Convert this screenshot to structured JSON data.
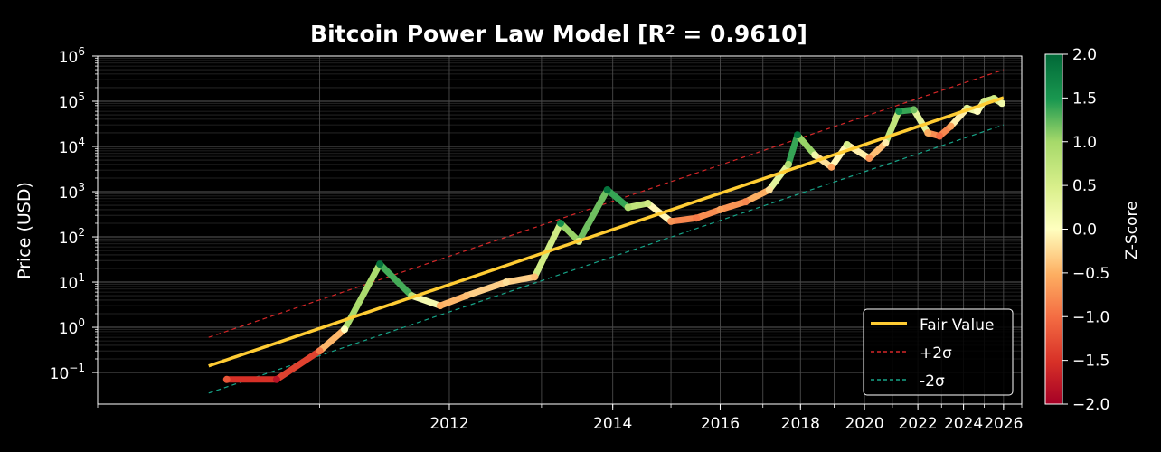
{
  "chart_data": {
    "type": "scatter",
    "title": "Bitcoin Power Law Model [R² = 0.9610]",
    "xlabel": "",
    "ylabel": "Price (USD)",
    "y_scale": "log",
    "y_ticks": [
      {
        "base": "10",
        "exp": "−1",
        "value": 0.1
      },
      {
        "base": "10",
        "exp": "0",
        "value": 1
      },
      {
        "base": "10",
        "exp": "1",
        "value": 10
      },
      {
        "base": "10",
        "exp": "2",
        "value": 100
      },
      {
        "base": "10",
        "exp": "3",
        "value": 1000
      },
      {
        "base": "10",
        "exp": "4",
        "value": 10000
      },
      {
        "base": "10",
        "exp": "5",
        "value": 100000
      },
      {
        "base": "10",
        "exp": "6",
        "value": 1000000
      }
    ],
    "x_scale": "log (days since genesis)",
    "x_ticks": [
      "2012",
      "2014",
      "2016",
      "2018",
      "2020",
      "2022",
      "2024",
      "2026"
    ],
    "x_tick_years": [
      2012,
      2014,
      2016,
      2018,
      2020,
      2022,
      2024,
      2026
    ],
    "xlim": [
      "2010-01",
      "2027-01"
    ],
    "ylim": [
      0.02,
      1000000
    ],
    "grid": true,
    "legend_position": "lower-right",
    "legend": [
      {
        "label": "Fair Value",
        "color": "#ffcc33",
        "style": "solid"
      },
      {
        "label": "+2σ",
        "color": "#d62728",
        "style": "dashed"
      },
      {
        "label": "-2σ",
        "color": "#17a589",
        "style": "dashed"
      }
    ],
    "series": [
      {
        "name": "Price",
        "color_by": "Z-Score",
        "points": [
          {
            "date": "2010-07",
            "price": 0.07,
            "z": -1.2
          },
          {
            "date": "2010-10",
            "price": 0.07,
            "z": -1.8
          },
          {
            "date": "2011-01",
            "price": 0.3,
            "z": -0.9
          },
          {
            "date": "2011-03",
            "price": 0.9,
            "z": 0.0
          },
          {
            "date": "2011-06",
            "price": 25,
            "z": 1.9
          },
          {
            "date": "2011-09",
            "price": 5,
            "z": 0.8
          },
          {
            "date": "2011-12",
            "price": 3,
            "z": -0.5
          },
          {
            "date": "2012-03",
            "price": 5,
            "z": -0.4
          },
          {
            "date": "2012-08",
            "price": 10,
            "z": -0.2
          },
          {
            "date": "2012-12",
            "price": 13,
            "z": -0.4
          },
          {
            "date": "2013-04",
            "price": 200,
            "z": 1.6
          },
          {
            "date": "2013-07",
            "price": 80,
            "z": 0.5
          },
          {
            "date": "2013-12",
            "price": 1100,
            "z": 1.9
          },
          {
            "date": "2014-04",
            "price": 450,
            "z": 0.9
          },
          {
            "date": "2014-08",
            "price": 550,
            "z": 0.6
          },
          {
            "date": "2015-01",
            "price": 220,
            "z": -0.7
          },
          {
            "date": "2015-07",
            "price": 260,
            "z": -0.9
          },
          {
            "date": "2016-01",
            "price": 400,
            "z": -0.6
          },
          {
            "date": "2016-08",
            "price": 600,
            "z": -0.8
          },
          {
            "date": "2017-03",
            "price": 1100,
            "z": -0.2
          },
          {
            "date": "2017-09",
            "price": 4000,
            "z": 0.9
          },
          {
            "date": "2017-12",
            "price": 18000,
            "z": 1.9
          },
          {
            "date": "2018-06",
            "price": 6500,
            "z": 0.2
          },
          {
            "date": "2018-12",
            "price": 3500,
            "z": -0.6
          },
          {
            "date": "2019-06",
            "price": 11000,
            "z": 0.5
          },
          {
            "date": "2020-03",
            "price": 5500,
            "z": -0.7
          },
          {
            "date": "2020-10",
            "price": 12000,
            "z": -0.1
          },
          {
            "date": "2021-04",
            "price": 60000,
            "z": 1.6
          },
          {
            "date": "2021-11",
            "price": 65000,
            "z": 1.2
          },
          {
            "date": "2022-06",
            "price": 20000,
            "z": -0.5
          },
          {
            "date": "2022-12",
            "price": 17000,
            "z": -1.0
          },
          {
            "date": "2023-06",
            "price": 28000,
            "z": -0.6
          },
          {
            "date": "2024-03",
            "price": 70000,
            "z": 0.4
          },
          {
            "date": "2024-09",
            "price": 60000,
            "z": 0.0
          },
          {
            "date": "2025-01",
            "price": 100000,
            "z": 0.5
          },
          {
            "date": "2025-07",
            "price": 115000,
            "z": 0.6
          },
          {
            "date": "2025-12",
            "price": 90000,
            "z": 0.2
          }
        ]
      },
      {
        "name": "Fair Value",
        "color": "#ffcc33",
        "points": [
          {
            "date": "2010-06",
            "price": 0.14
          },
          {
            "date": "2026-01",
            "price": 120000
          }
        ]
      },
      {
        "name": "+2σ",
        "color": "#d62728",
        "points": [
          {
            "date": "2010-06",
            "price": 0.6
          },
          {
            "date": "2026-01",
            "price": 500000
          }
        ]
      },
      {
        "name": "-2σ",
        "color": "#17a589",
        "points": [
          {
            "date": "2010-06",
            "price": 0.035
          },
          {
            "date": "2026-01",
            "price": 30000
          }
        ]
      }
    ],
    "colorbar": {
      "label": "Z-Score",
      "range": [
        -2.0,
        2.0
      ],
      "ticks": [
        "2.0",
        "1.5",
        "1.0",
        "0.5",
        "0.0",
        "−0.5",
        "−1.0",
        "−1.5",
        "−2.0"
      ],
      "tick_values": [
        2.0,
        1.5,
        1.0,
        0.5,
        0.0,
        -0.5,
        -1.0,
        -1.5,
        -2.0
      ],
      "colormap": "RdYlGn"
    }
  }
}
